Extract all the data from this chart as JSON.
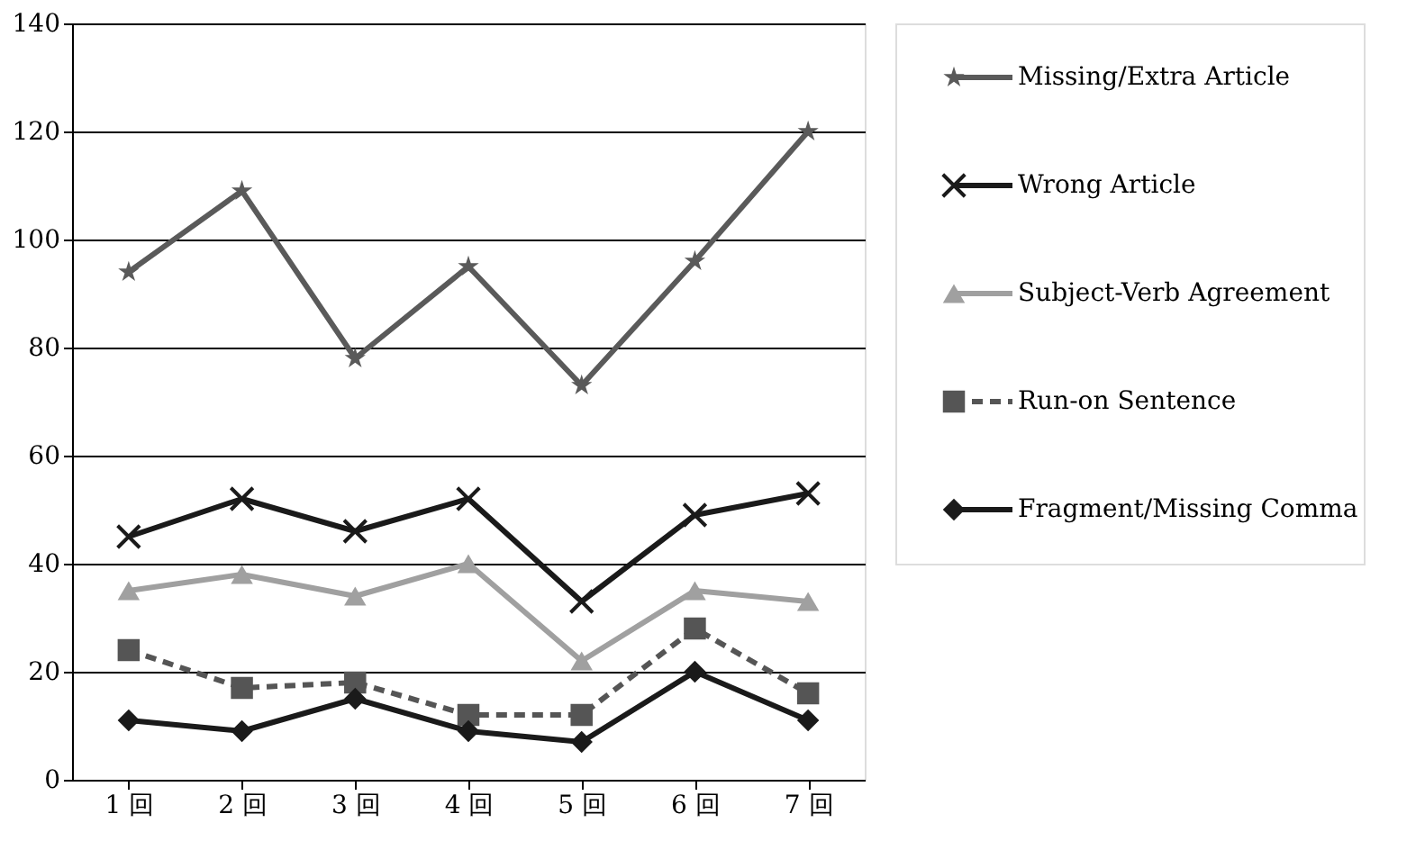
{
  "chart_data": {
    "type": "line",
    "categories": [
      "1 回",
      "2 回",
      "3 回",
      "4 回",
      "5 回",
      "6 回",
      "7 回"
    ],
    "series": [
      {
        "name": "Missing/Extra Article",
        "color": "#5a5a5a",
        "marker": "star",
        "line_style": "solid",
        "values": [
          94,
          109,
          78,
          95,
          73,
          96,
          120
        ]
      },
      {
        "name": "Wrong Article",
        "color": "#1a1a1a",
        "marker": "cross",
        "line_style": "solid",
        "values": [
          45,
          52,
          46,
          52,
          33,
          49,
          53
        ]
      },
      {
        "name": "Subject-Verb Agreement",
        "color": "#a0a0a0",
        "marker": "triangle",
        "line_style": "solid",
        "values": [
          35,
          38,
          34,
          40,
          22,
          35,
          33
        ]
      },
      {
        "name": "Run-on Sentence",
        "color": "#555555",
        "marker": "square",
        "line_style": "dashed",
        "values": [
          24,
          17,
          18,
          12,
          12,
          28,
          16
        ]
      },
      {
        "name": "Fragment/Missing Comma",
        "color": "#1a1a1a",
        "marker": "diamond",
        "line_style": "solid",
        "values": [
          11,
          9,
          15,
          9,
          7,
          20,
          11
        ]
      }
    ],
    "ylim": [
      0,
      140
    ],
    "yticks": [
      0,
      20,
      40,
      60,
      80,
      100,
      120,
      140
    ],
    "grid": "y",
    "legend": "right"
  }
}
